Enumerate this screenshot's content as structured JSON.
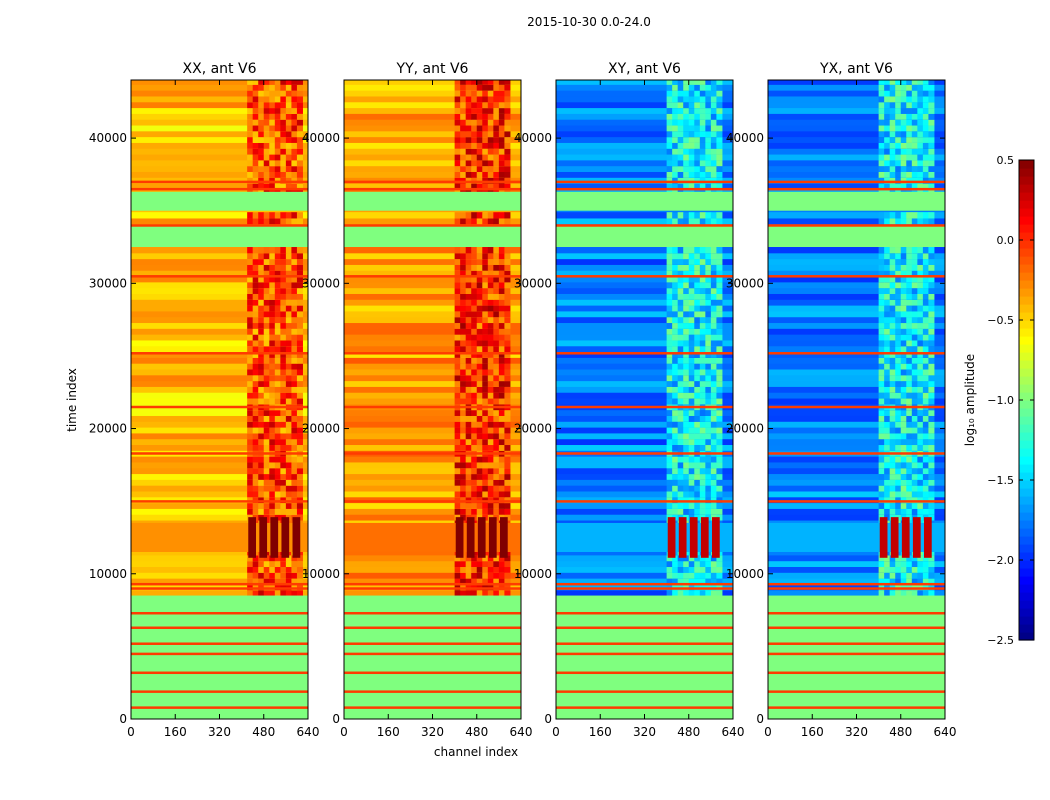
{
  "figure": {
    "suptitle": "2015-10-30 0.0-24.0",
    "xlabel": "channel index",
    "ylabel": "time index",
    "colorbar_label": "log₁₀ amplitude"
  },
  "colors": {
    "background": "#ffffff",
    "empty_band": "#7fff7f"
  },
  "chart_data": {
    "type": "heatmap",
    "colormap": "jet",
    "xlim": [
      0,
      640
    ],
    "ylim": [
      0,
      44000
    ],
    "xticks": [
      0,
      160,
      320,
      480,
      640
    ],
    "yticks": [
      0,
      10000,
      20000,
      30000,
      40000
    ],
    "color_range": [
      -2.5,
      0.5
    ],
    "colorbar_ticks": [
      "0.5",
      "0.0",
      "−0.5",
      "−1.0",
      "−1.5",
      "−2.0",
      "−2.5"
    ],
    "panels": [
      {
        "title": "XX, ant V6",
        "base_level": -0.45,
        "strong_band_level": 0.5,
        "noisy_columns": [
          420,
          620
        ]
      },
      {
        "title": "YY, ant V6",
        "base_level": -0.35,
        "strong_band_level": 0.5,
        "noisy_columns": [
          400,
          600
        ]
      },
      {
        "title": "XY, ant V6",
        "base_level": -1.75,
        "strong_band_level": 0.3,
        "noisy_columns": [
          400,
          600
        ]
      },
      {
        "title": "YX, ant V6",
        "base_level": -1.75,
        "strong_band_level": 0.3,
        "noisy_columns": [
          400,
          600
        ]
      }
    ],
    "uniform_bands": [
      [
        0,
        8500
      ],
      [
        32500,
        34000
      ],
      [
        35000,
        36300
      ]
    ],
    "strong_band": [
      11500,
      13500
    ],
    "flagged_rows": [
      800,
      1900,
      3200,
      4500,
      5200,
      6300,
      7300,
      9000,
      9300,
      15000,
      18300,
      21500,
      25200,
      30500,
      34000,
      36500,
      37000
    ]
  }
}
